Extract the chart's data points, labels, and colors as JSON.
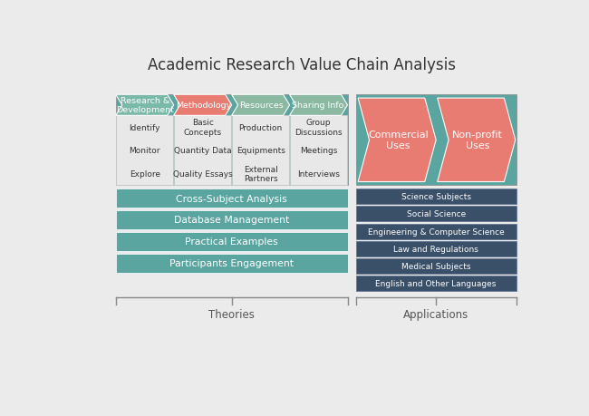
{
  "title": "Academic Research Value Chain Analysis",
  "bg_color": "#ebebeb",
  "teal_color": "#5aa5a0",
  "salmon_color": "#e87c72",
  "arrow_teal": "#7ab8a8",
  "arrow_salmon": "#e87c72",
  "gray_box": "#e8e8e8",
  "dark_blue": "#3a4f68",
  "white": "#ffffff",
  "top_arrows": [
    {
      "label": "Research &\nDevelopment",
      "color": "#7ab8a8"
    },
    {
      "label": "Methodology",
      "color": "#e87c72"
    },
    {
      "label": "Resources",
      "color": "#8ab8a0"
    },
    {
      "label": "Sharing Info.",
      "color": "#8ab8a0"
    }
  ],
  "top_arrow_items": [
    [
      "Identify",
      "Monitor",
      "Explore"
    ],
    [
      "Basic\nConcepts",
      "Quantity Data",
      "Quality Essays"
    ],
    [
      "Production",
      "Equipments",
      "External\nPartners"
    ],
    [
      "Group\nDiscussions",
      "Meetings",
      "Interviews"
    ]
  ],
  "left_bars": [
    "Cross-Subject Analysis",
    "Database Management",
    "Practical Examples",
    "Participants Engagement"
  ],
  "right_arrows": [
    {
      "label": "Commercial\nUses",
      "color": "#e87c72"
    },
    {
      "label": "Non-profit\nUses",
      "color": "#e87c72"
    }
  ],
  "right_bars": [
    "Science Subjects",
    "Social Science",
    "Engineering & Computer Science",
    "Law and Regulations",
    "Medical Subjects",
    "English and Other Languages"
  ],
  "theories_label": "Theories",
  "applications_label": "Applications"
}
